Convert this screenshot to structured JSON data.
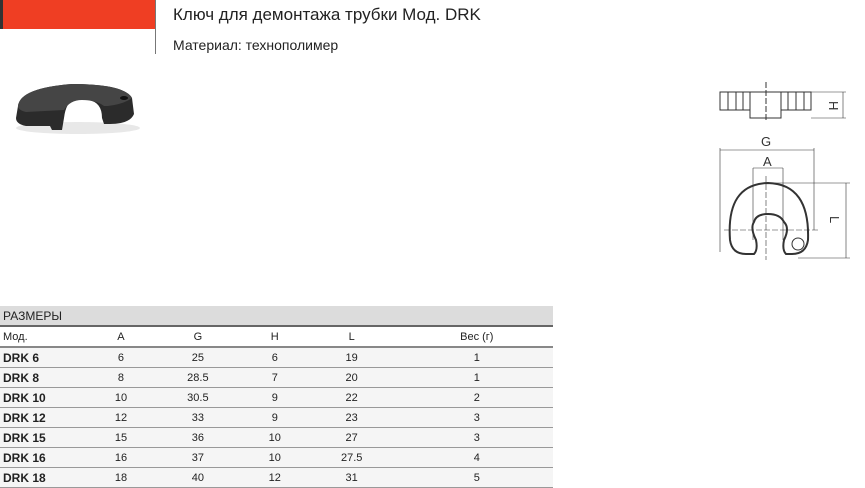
{
  "header": {
    "title": "Ключ для демонтажа трубки Мод. DRK",
    "material": "Материал: технополимер",
    "accent": "#ef3e23"
  },
  "drawing": {
    "labels": {
      "G": "G",
      "A": "A",
      "H": "H",
      "L": "L"
    }
  },
  "table": {
    "caption": "РАЗМЕРЫ",
    "columns": [
      "Мод.",
      "A",
      "G",
      "H",
      "L",
      "Вес (г)"
    ],
    "rows": [
      [
        "DRK 6",
        "6",
        "25",
        "6",
        "19",
        "1"
      ],
      [
        "DRK 8",
        "8",
        "28.5",
        "7",
        "20",
        "1"
      ],
      [
        "DRK 10",
        "10",
        "30.5",
        "9",
        "22",
        "2"
      ],
      [
        "DRK 12",
        "12",
        "33",
        "9",
        "23",
        "3"
      ],
      [
        "DRK 15",
        "15",
        "36",
        "10",
        "27",
        "3"
      ],
      [
        "DRK 16",
        "16",
        "37",
        "10",
        "27.5",
        "4"
      ],
      [
        "DRK 18",
        "18",
        "40",
        "12",
        "31",
        "5"
      ]
    ]
  }
}
